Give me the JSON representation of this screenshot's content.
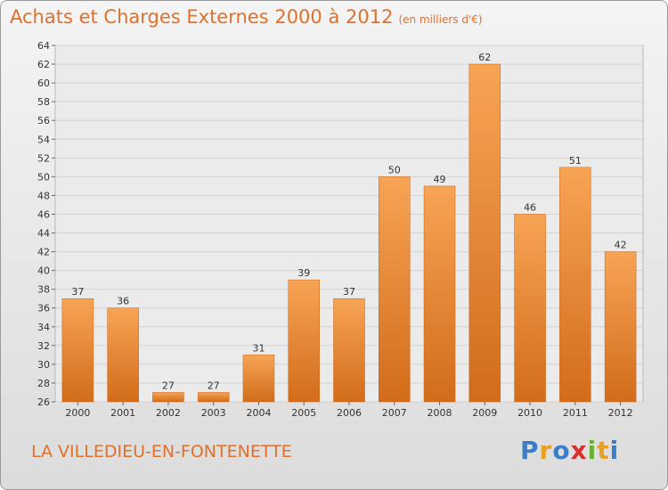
{
  "title": "Achats et Charges Externes 2000 à 2012",
  "subtitle": "(en milliers d'€)",
  "commune": "LA VILLEDIEU-EN-FONTENETTE",
  "logo": {
    "letters": [
      "P",
      "r",
      "o",
      "x",
      "i",
      "t",
      "i"
    ],
    "colors": [
      "#3a7ec8",
      "#e8a020",
      "#3a7ec8",
      "#d93030",
      "#6ab030",
      "#e8a020",
      "#3a7ec8"
    ]
  },
  "colors": {
    "title": "#e0702a",
    "bar_top": "#f7a455",
    "bar_bottom": "#d26c1a"
  },
  "chart_data": {
    "type": "bar",
    "categories": [
      "2000",
      "2001",
      "2002",
      "2003",
      "2004",
      "2005",
      "2006",
      "2007",
      "2008",
      "2009",
      "2010",
      "2011",
      "2012"
    ],
    "values": [
      37,
      36,
      27,
      27,
      31,
      39,
      37,
      50,
      49,
      62,
      46,
      51,
      42
    ],
    "title": "Achats et Charges Externes 2000 à 2012",
    "ylim": [
      26,
      64
    ],
    "yticks": [
      26,
      28,
      30,
      32,
      34,
      36,
      38,
      40,
      42,
      44,
      46,
      48,
      50,
      52,
      54,
      56,
      58,
      60,
      62,
      64
    ],
    "grid": true,
    "data_labels": true
  }
}
